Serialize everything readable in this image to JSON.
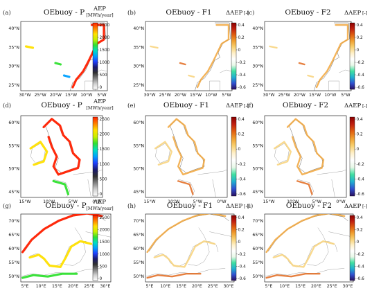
{
  "colors": {
    "p_colormap": [
      "#ffffff",
      "#d0d0d0",
      "#808080",
      "#303030",
      "#1a1a6e",
      "#1f3fff",
      "#00a0ff",
      "#00e0c0",
      "#30e030",
      "#c8f000",
      "#ffe000",
      "#ff8000",
      "#ff2000"
    ],
    "f_colormap": [
      "#2a0f5e",
      "#3050d0",
      "#20b0d0",
      "#40e0a0",
      "#e8f8e8",
      "#ffffff",
      "#fff0c8",
      "#f8d070",
      "#f0a030",
      "#e06010",
      "#c02010",
      "#8b0000"
    ]
  },
  "rows": [
    {
      "panels": [
        {
          "label": "(a)",
          "title": "OEbuoy - P",
          "type": "P"
        },
        {
          "label": "(b)",
          "title": "OEbuoy - F1",
          "type": "F"
        },
        {
          "label": "(c)",
          "title": "OEbuoy - F2",
          "type": "F"
        }
      ],
      "yticks": [
        "40°N",
        "35°N",
        "30°N",
        "25°N"
      ],
      "xticks": [
        "30°W",
        "25°W",
        "20°W",
        "15°W",
        "10°W",
        "5°W"
      ]
    },
    {
      "panels": [
        {
          "label": "(d)",
          "title": "OEbuoy - P",
          "type": "P"
        },
        {
          "label": "(e)",
          "title": "OEbuoy - F1",
          "type": "F"
        },
        {
          "label": "(f)",
          "title": "OEbuoy - F2",
          "type": "F"
        }
      ],
      "yticks": [
        "60°N",
        "55°N",
        "50°N",
        "45°N"
      ],
      "xticks": [
        "15°W",
        "10°W",
        "5°W",
        "0°W"
      ]
    },
    {
      "panels": [
        {
          "label": "(g)",
          "title": "OEbuoy - P",
          "type": "P"
        },
        {
          "label": "(h)",
          "title": "OEbuoy - F1",
          "type": "F"
        },
        {
          "label": "(i)",
          "title": "OEbuoy - F2",
          "type": "F"
        }
      ],
      "yticks": [
        "70°N",
        "65°N",
        "60°N",
        "55°N",
        "50°N"
      ],
      "xticks": [
        "5°E",
        "10°E",
        "15°E",
        "20°E",
        "25°E",
        "30°E"
      ]
    }
  ],
  "colorbar_p": {
    "label": "AEP",
    "unit_rows": [
      "[MWh/year]",
      "[MWh/year]",
      "[MWh/year]"
    ],
    "ticks": [
      "2500",
      "2000",
      "1500",
      "1000",
      "500",
      "0"
    ]
  },
  "colorbar_f": {
    "label": "ΔAEP",
    "unit": "[-]",
    "ticks": [
      "0.4",
      "0.2",
      "0",
      "-0.2",
      "-0.4",
      "-0.6"
    ]
  },
  "chart_data": [
    {
      "type": "heatmap",
      "panel": "(a)",
      "title": "OEbuoy - P",
      "colorbar_label": "AEP [MWh/year]",
      "colorbar_range": [
        0,
        2500
      ],
      "x_ticks": [
        "30°W",
        "25°W",
        "20°W",
        "15°W",
        "10°W",
        "5°W"
      ],
      "y_ticks": [
        "40°N",
        "35°N",
        "30°N",
        "25°N"
      ]
    },
    {
      "type": "heatmap",
      "panel": "(b)",
      "title": "OEbuoy - F1",
      "colorbar_label": "ΔAEP [-]",
      "colorbar_range": [
        -0.6,
        0.5
      ],
      "x_ticks": [
        "30°W",
        "25°W",
        "20°W",
        "15°W",
        "10°W",
        "5°W"
      ],
      "y_ticks": [
        "40°N",
        "35°N",
        "30°N",
        "25°N"
      ]
    },
    {
      "type": "heatmap",
      "panel": "(c)",
      "title": "OEbuoy - F2",
      "colorbar_label": "ΔAEP [-]",
      "colorbar_range": [
        -0.6,
        0.5
      ],
      "x_ticks": [
        "30°W",
        "25°W",
        "20°W",
        "15°W",
        "10°W",
        "5°W"
      ],
      "y_ticks": [
        "40°N",
        "35°N",
        "30°N",
        "25°N"
      ]
    },
    {
      "type": "heatmap",
      "panel": "(d)",
      "title": "OEbuoy - P",
      "colorbar_label": "AEP [MWh/year]",
      "colorbar_range": [
        0,
        2500
      ],
      "x_ticks": [
        "15°W",
        "10°W",
        "5°W",
        "0°W"
      ],
      "y_ticks": [
        "60°N",
        "55°N",
        "50°N",
        "45°N"
      ]
    },
    {
      "type": "heatmap",
      "panel": "(e)",
      "title": "OEbuoy - F1",
      "colorbar_label": "ΔAEP [-]",
      "colorbar_range": [
        -0.6,
        0.5
      ],
      "x_ticks": [
        "15°W",
        "10°W",
        "5°W",
        "0°W"
      ],
      "y_ticks": [
        "60°N",
        "55°N",
        "50°N",
        "45°N"
      ]
    },
    {
      "type": "heatmap",
      "panel": "(f)",
      "title": "OEbuoy - F2",
      "colorbar_label": "ΔAEP [-]",
      "colorbar_range": [
        -0.6,
        0.5
      ],
      "x_ticks": [
        "15°W",
        "10°W",
        "5°W",
        "0°W"
      ],
      "y_ticks": [
        "60°N",
        "55°N",
        "50°N",
        "45°N"
      ]
    },
    {
      "type": "heatmap",
      "panel": "(g)",
      "title": "OEbuoy - P",
      "colorbar_label": "AEP [MWh/year]",
      "colorbar_range": [
        0,
        2500
      ],
      "x_ticks": [
        "5°E",
        "10°E",
        "15°E",
        "20°E",
        "25°E",
        "30°E"
      ],
      "y_ticks": [
        "70°N",
        "65°N",
        "60°N",
        "55°N",
        "50°N"
      ]
    },
    {
      "type": "heatmap",
      "panel": "(h)",
      "title": "OEbuoy - F1",
      "colorbar_label": "ΔAEP [-]",
      "colorbar_range": [
        -0.6,
        0.5
      ],
      "x_ticks": [
        "5°E",
        "10°E",
        "15°E",
        "20°E",
        "25°E",
        "30°E"
      ],
      "y_ticks": [
        "70°N",
        "65°N",
        "60°N",
        "55°N",
        "50°N"
      ]
    },
    {
      "type": "heatmap",
      "panel": "(i)",
      "title": "OEbuoy - F2",
      "colorbar_label": "ΔAEP [-]",
      "colorbar_range": [
        -0.6,
        0.5
      ],
      "x_ticks": [
        "5°E",
        "10°E",
        "15°E",
        "20°E",
        "25°E",
        "30°E"
      ],
      "y_ticks": [
        "70°N",
        "65°N",
        "60°N",
        "55°N",
        "50°N"
      ]
    }
  ]
}
